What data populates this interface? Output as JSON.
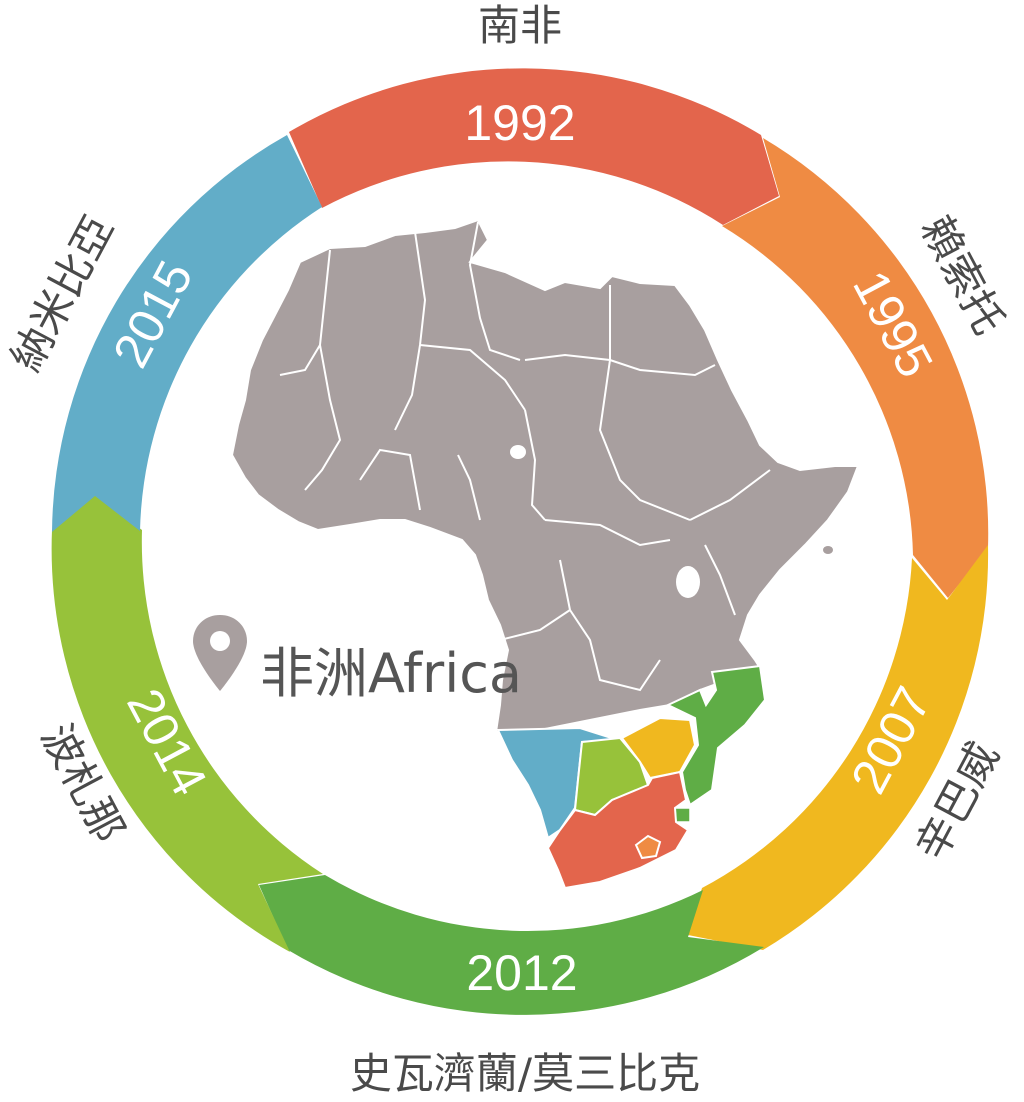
{
  "colors": {
    "seg_1992": "#e3654c",
    "seg_1995": "#ef8b43",
    "seg_2007": "#f0b81f",
    "seg_2012": "#5fad46",
    "seg_2014": "#97c23a",
    "seg_2015": "#62adc8",
    "land": "#a89f9f",
    "border": "#ffffff",
    "text": "#4a4a4a"
  },
  "timeline": [
    {
      "year": "1992",
      "country": "南非",
      "color_key": "seg_1992"
    },
    {
      "year": "1995",
      "country": "賴索托",
      "color_key": "seg_1995"
    },
    {
      "year": "2007",
      "country": "辛巴威",
      "color_key": "seg_2007"
    },
    {
      "year": "2012",
      "country": "史瓦濟蘭/莫三比克",
      "color_key": "seg_2012"
    },
    {
      "year": "2014",
      "country": "波札那",
      "color_key": "seg_2014"
    },
    {
      "year": "2015",
      "country": "納米比亞",
      "color_key": "seg_2015"
    }
  ],
  "map": {
    "pin_icon": "map-pin-icon",
    "label": "非洲Africa"
  }
}
